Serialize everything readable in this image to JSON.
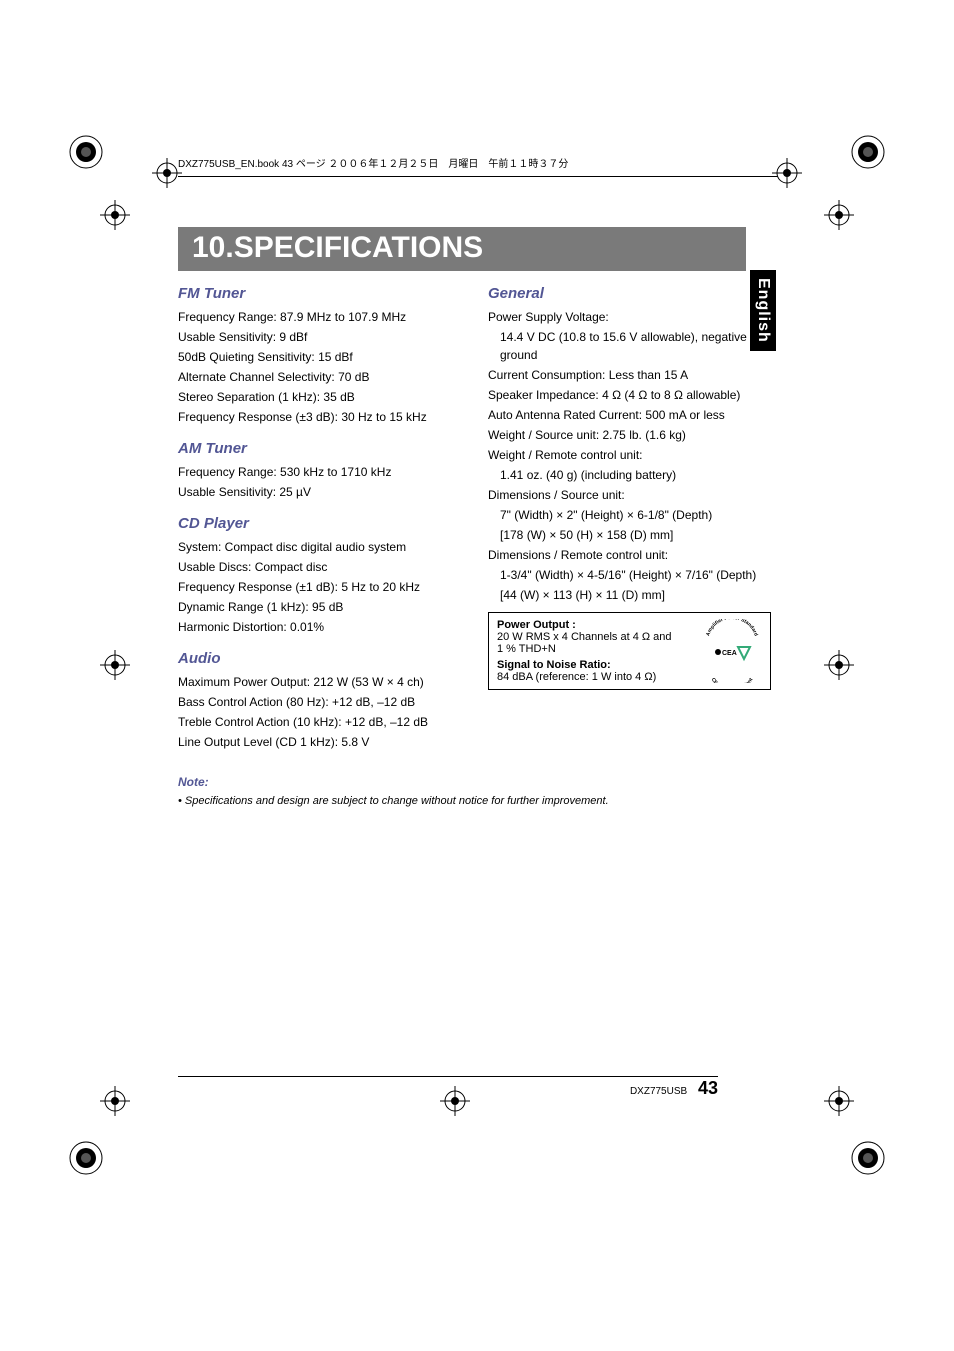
{
  "header": {
    "text": "DXZ775USB_EN.book  43 ページ  ２００６年１２月２５日　月曜日　午前１１時３７分"
  },
  "banner": "10.SPECIFICATIONS",
  "language_tab": "English",
  "sections": {
    "fm": {
      "title": "FM Tuner",
      "lines": [
        "Frequency Range: 87.9 MHz to 107.9 MHz",
        "Usable Sensitivity: 9 dBf",
        "50dB Quieting Sensitivity: 15 dBf",
        "Alternate Channel Selectivity: 70 dB",
        "Stereo Separation (1 kHz): 35 dB",
        "Frequency Response (±3 dB): 30 Hz to 15 kHz"
      ]
    },
    "am": {
      "title": "AM Tuner",
      "lines": [
        "Frequency Range: 530 kHz to 1710 kHz",
        "Usable Sensitivity: 25 µV"
      ]
    },
    "cd": {
      "title": "CD Player",
      "lines": [
        "System: Compact disc digital audio system",
        "Usable Discs: Compact disc",
        "Frequency Response (±1 dB): 5 Hz to 20 kHz",
        "Dynamic Range (1 kHz): 95 dB",
        "Harmonic Distortion: 0.01%"
      ]
    },
    "audio": {
      "title": "Audio",
      "lines": [
        "Maximum Power Output: 212 W (53 W × 4 ch)",
        "Bass Control Action (80 Hz): +12 dB, –12 dB",
        "Treble Control Action (10 kHz): +12 dB, –12 dB",
        "Line Output Level (CD 1 kHz): 5.8 V"
      ]
    },
    "general": {
      "title": "General",
      "lines": [
        "Power Supply Voltage:",
        "14.4 V DC (10.8 to 15.6 V allowable), negative ground",
        "Current Consumption: Less than 15 A",
        "Speaker Impedance: 4 Ω (4 Ω to 8 Ω allowable)",
        "Auto Antenna Rated Current: 500 mA or less",
        "Weight / Source unit: 2.75 lb. (1.6 kg)",
        "Weight / Remote control unit:",
        "1.41 oz. (40 g) (including battery)",
        "Dimensions / Source unit:",
        "7\" (Width) × 2\" (Height) × 6-1/8\" (Depth)",
        "[178 (W) × 50 (H) × 158 (D) mm]",
        "Dimensions / Remote control unit:",
        "1-3/4\" (Width) × 4-5/16\" (Height) × 7/16\" (Depth)",
        "[44 (W) × 113 (H) × 11 (D) mm]"
      ],
      "indents": [
        false,
        true,
        false,
        false,
        false,
        false,
        false,
        true,
        false,
        true,
        true,
        false,
        true,
        true
      ]
    }
  },
  "power_box": {
    "po_label": "Power Output :",
    "po_value": "20 W RMS x 4 Channels at 4 Ω and 1 % THD+N",
    "snr_label": "Signal to Noise Ratio:",
    "snr_value": "84 dBA (reference: 1 W  into 4 Ω)",
    "logo_top": "Amplifier Power Standard",
    "logo_mid": "CEA",
    "logo_bot": "CEA-2006 Compliant"
  },
  "note": {
    "title": "Note:",
    "body": "• Specifications and design are subject to change without notice for further improvement."
  },
  "footer": {
    "model": "DXZ775USB",
    "page": "43"
  }
}
